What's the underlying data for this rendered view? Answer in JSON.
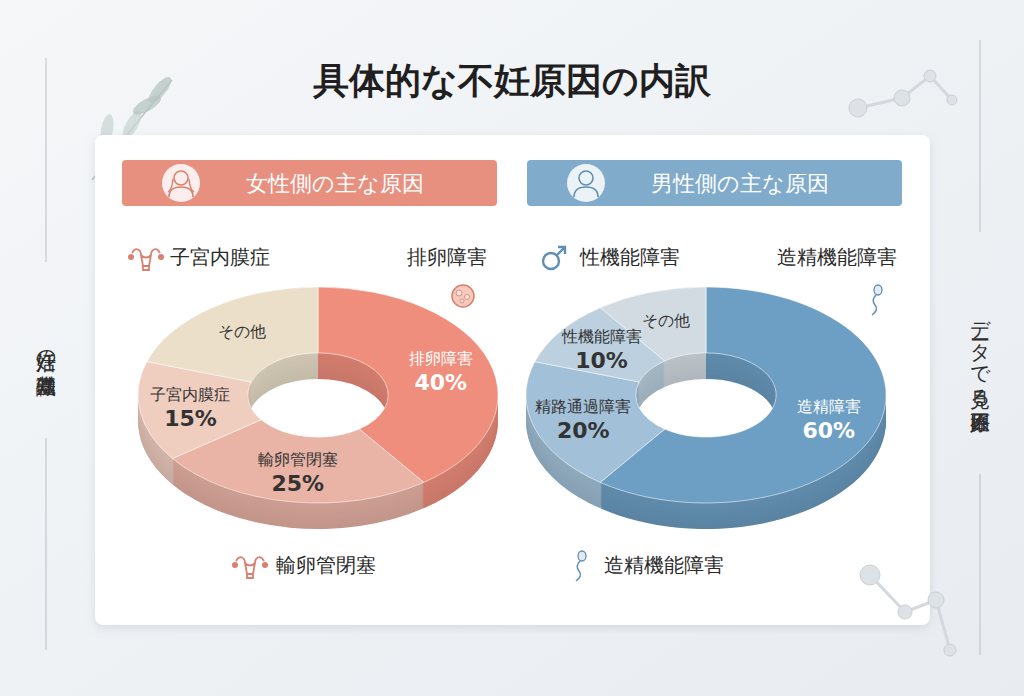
{
  "page": {
    "title": "具体的な不妊原因の内訳",
    "left_note": "妊活の基礎知識",
    "right_note": "データで見る不妊原因"
  },
  "chart_data": [
    {
      "type": "donut",
      "title": "女性側の主な原因",
      "categories": [
        "排卵障害",
        "輸卵管閉塞",
        "子宮内膜症",
        "その他"
      ],
      "values": [
        40,
        25,
        15,
        20
      ],
      "value_labels": [
        "40%",
        "25%",
        "15%",
        null
      ],
      "colors": [
        "#ef8e7d",
        "#e9b3a6",
        "#efcdbf",
        "#ebdfca"
      ],
      "data_labels": true,
      "annotations": [
        "子宮内膜症",
        "排卵障害",
        "輸卵管閉塞"
      ]
    },
    {
      "type": "donut",
      "title": "男性側の主な原因",
      "categories": [
        "造精障害",
        "精路通過障害",
        "性機能障害",
        "その他"
      ],
      "values": [
        60,
        20,
        10,
        10
      ],
      "value_labels": [
        "60%",
        "20%",
        "10%",
        null
      ],
      "colors": [
        "#6d9ec3",
        "#a2c0d7",
        "#bcd0df",
        "#d3dbe2"
      ],
      "data_labels": true,
      "annotations": [
        "性機能障害",
        "造精機能障害",
        "造精機能障害"
      ]
    }
  ]
}
